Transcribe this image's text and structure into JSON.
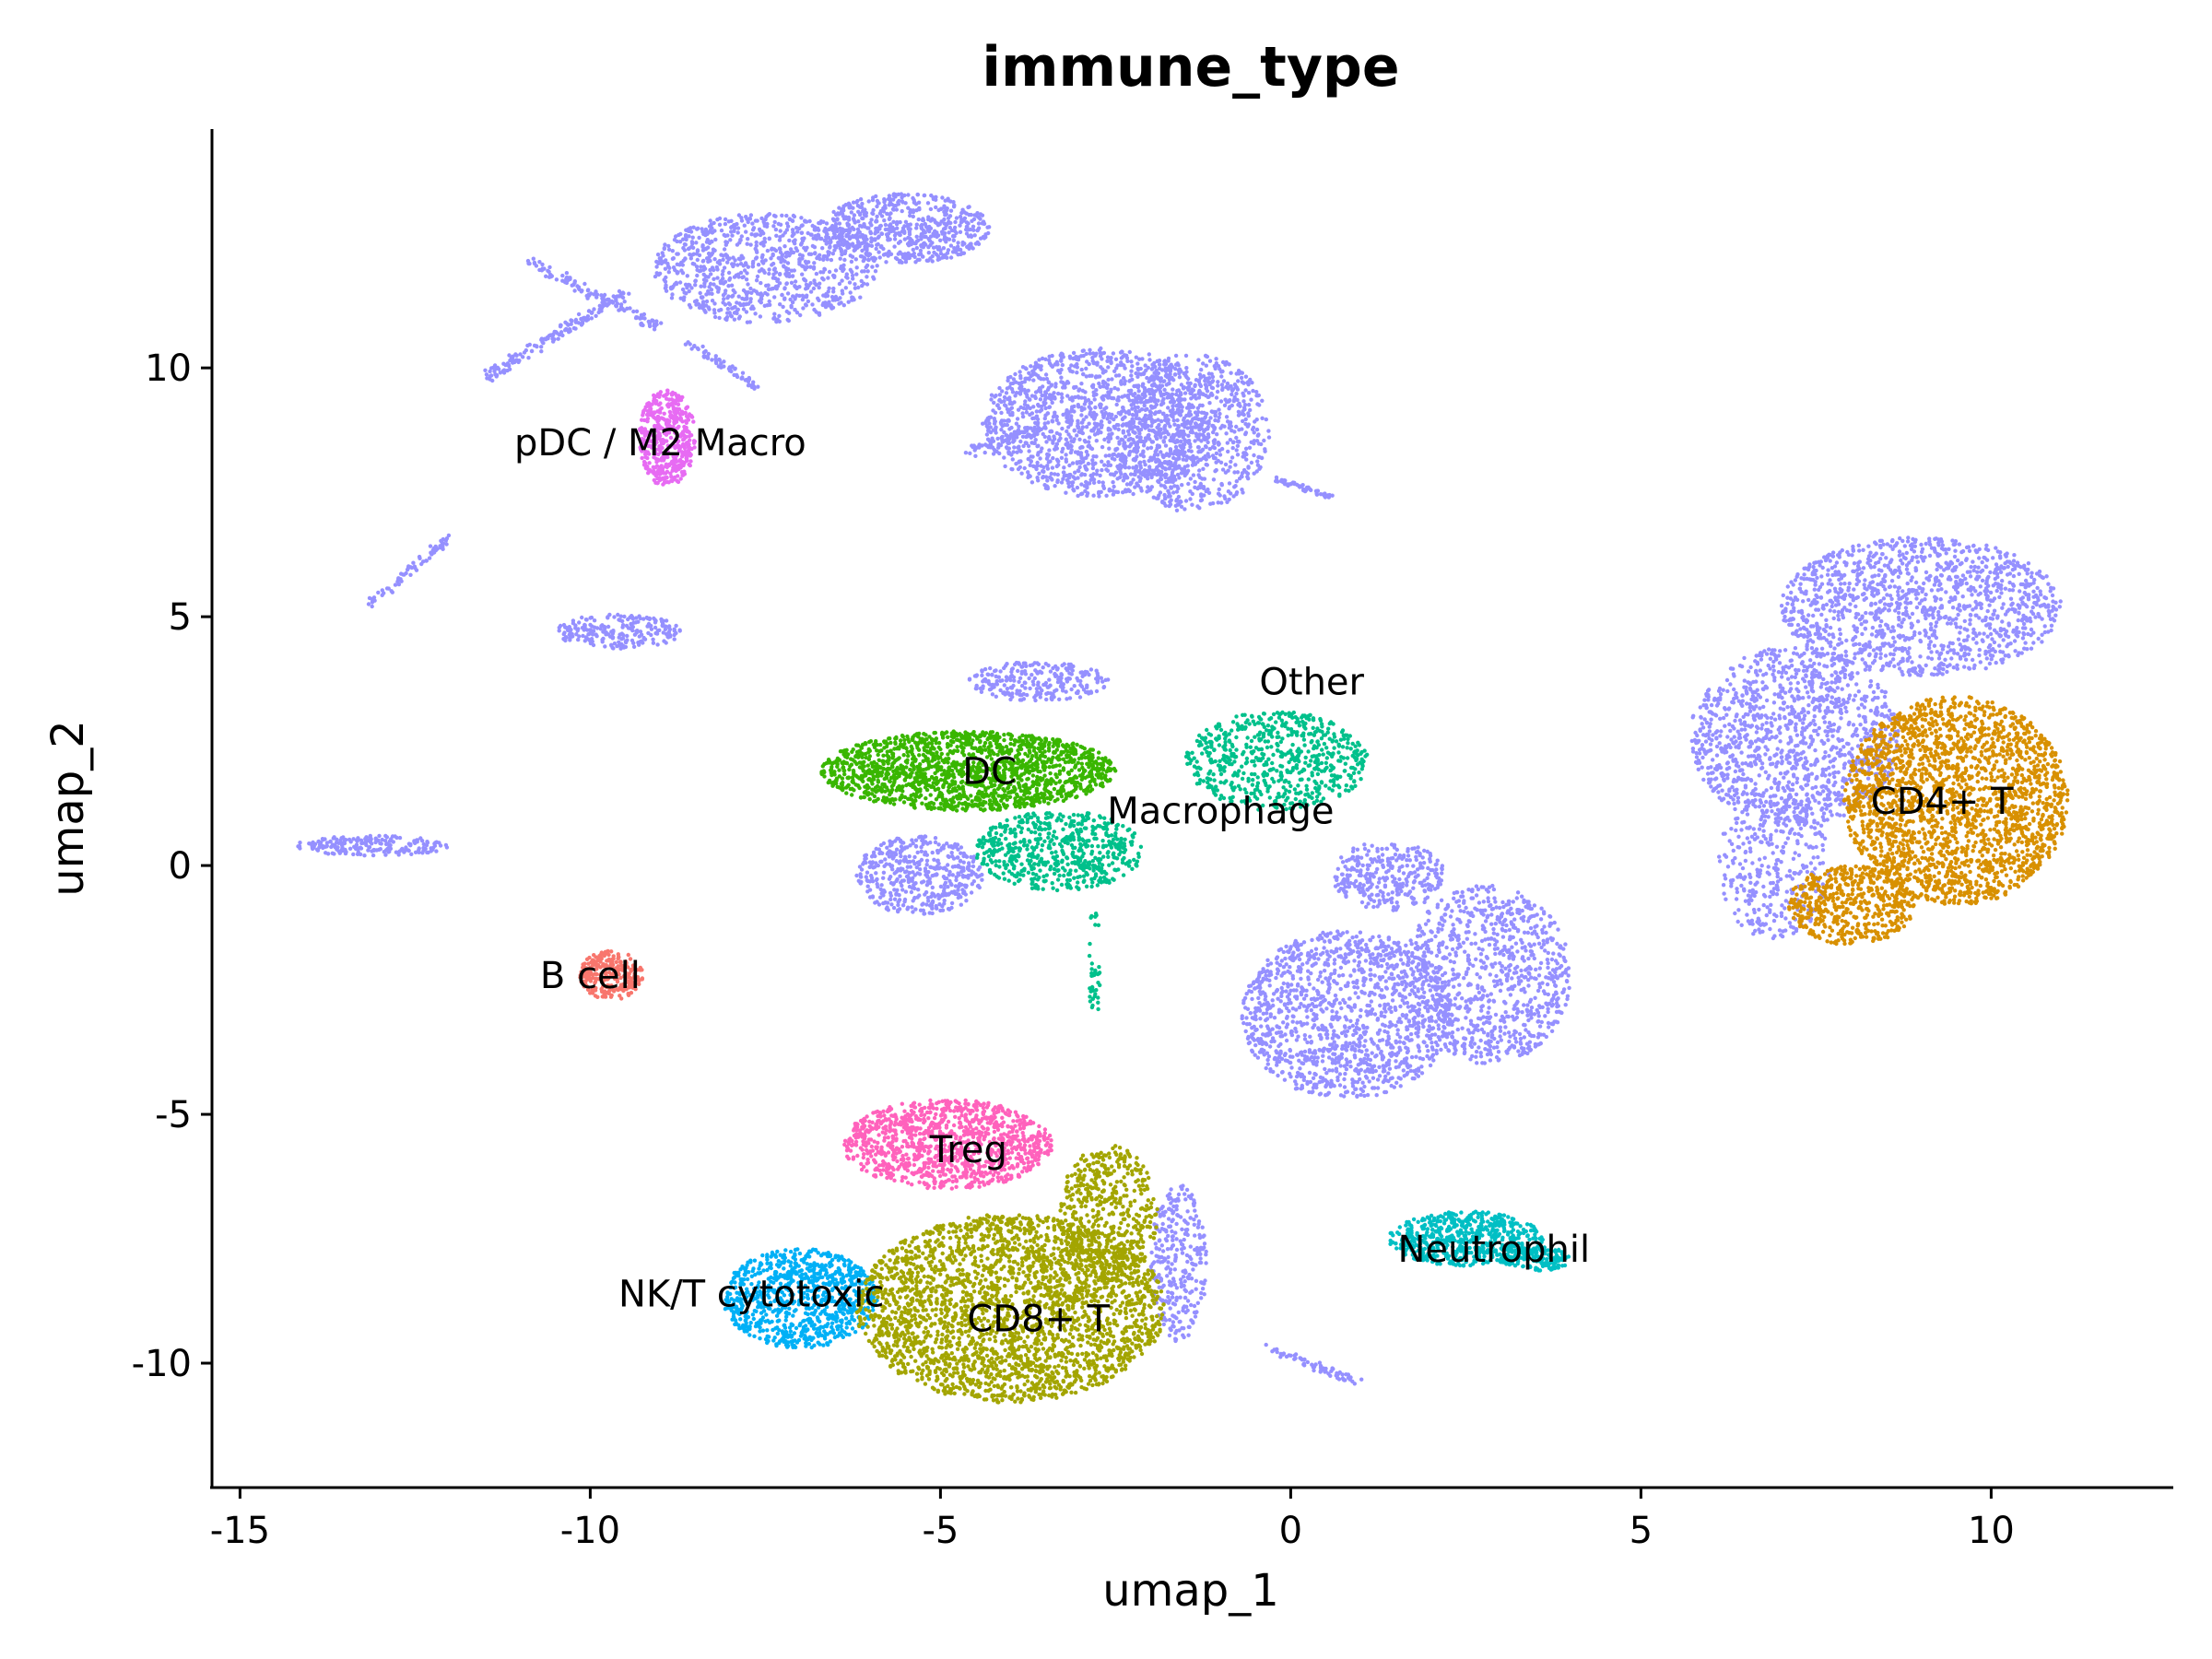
{
  "chart_data": {
    "type": "scatter",
    "title": "immune_type",
    "xlabel": "umap_1",
    "ylabel": "umap_2",
    "xlim": [
      -15.4,
      12.6
    ],
    "ylim": [
      -12.5,
      14.8
    ],
    "xticks": [
      -15,
      -10,
      -5,
      0,
      5,
      10
    ],
    "yticks": [
      -10,
      -5,
      0,
      5,
      10
    ],
    "xtick_labels": [
      "-15",
      "-10",
      "-5",
      "0",
      "5",
      "10"
    ],
    "ytick_labels": [
      "-10",
      "-5",
      "0",
      "5",
      "10"
    ],
    "grid": false,
    "legend": "none",
    "series": [
      {
        "name": "Other",
        "color": "#9590FF",
        "label_pos": [
          0.3,
          3.7
        ]
      },
      {
        "name": "pDC / M2 Macro",
        "color": "#E76BF3",
        "label_pos": [
          -9.0,
          8.5
        ]
      },
      {
        "name": "DC",
        "color": "#39B600",
        "label_pos": [
          -4.3,
          1.9
        ]
      },
      {
        "name": "Macrophage",
        "color": "#00C08B",
        "label_pos": [
          -1.0,
          1.1
        ]
      },
      {
        "name": "B cell",
        "color": "#F8766D",
        "label_pos": [
          -10.0,
          -2.2
        ]
      },
      {
        "name": "Treg",
        "color": "#FF62BC",
        "label_pos": [
          -4.6,
          -5.7
        ]
      },
      {
        "name": "NK/T cytotoxic",
        "color": "#00B0F6",
        "label_pos": [
          -7.7,
          -8.6
        ]
      },
      {
        "name": "CD8+ T",
        "color": "#A3A500",
        "label_pos": [
          -3.6,
          -9.1
        ]
      },
      {
        "name": "CD4+ T",
        "color": "#D89000",
        "label_pos": [
          9.3,
          1.3
        ]
      },
      {
        "name": "Neutrophil",
        "color": "#00BFC4",
        "label_pos": [
          2.9,
          -7.7
        ]
      }
    ],
    "clusters": [
      {
        "series": "Other",
        "shape": "ellipse",
        "cx": -7.5,
        "cy": 12.0,
        "rx": 1.6,
        "ry": 1.1,
        "n": 900
      },
      {
        "series": "Other",
        "shape": "ellipse",
        "cx": -5.5,
        "cy": 12.8,
        "rx": 1.2,
        "ry": 0.7,
        "n": 600
      },
      {
        "series": "Other",
        "shape": "line",
        "x1": -9.5,
        "y1": 11.5,
        "x2": -11.5,
        "y2": 9.8,
        "w": 0.2,
        "n": 150
      },
      {
        "series": "Other",
        "shape": "line",
        "x1": -9.0,
        "y1": 10.8,
        "x2": -10.8,
        "y2": 12.1,
        "w": 0.2,
        "n": 120
      },
      {
        "series": "Other",
        "shape": "line",
        "x1": -8.6,
        "y1": 10.5,
        "x2": -7.6,
        "y2": 9.6,
        "w": 0.15,
        "n": 60
      },
      {
        "series": "Other",
        "shape": "ellipse",
        "cx": -2.7,
        "cy": 8.9,
        "rx": 1.7,
        "ry": 1.5,
        "n": 1400
      },
      {
        "series": "Other",
        "shape": "ellipse",
        "cx": -1.4,
        "cy": 8.7,
        "rx": 1.1,
        "ry": 1.6,
        "n": 700
      },
      {
        "series": "Other",
        "shape": "line",
        "x1": -4.6,
        "y1": 8.3,
        "x2": -3.5,
        "y2": 8.8,
        "w": 0.2,
        "n": 80
      },
      {
        "series": "Other",
        "shape": "line",
        "x1": -0.3,
        "y1": 7.8,
        "x2": 0.6,
        "y2": 7.4,
        "w": 0.1,
        "n": 50
      },
      {
        "series": "Other",
        "shape": "line",
        "x1": -13.2,
        "y1": 5.2,
        "x2": -12.0,
        "y2": 6.6,
        "w": 0.15,
        "n": 70
      },
      {
        "series": "Other",
        "shape": "ellipse",
        "cx": -9.6,
        "cy": 4.7,
        "rx": 0.9,
        "ry": 0.35,
        "n": 220
      },
      {
        "series": "Other",
        "shape": "ellipse",
        "cx": -13.1,
        "cy": 0.4,
        "rx": 1.1,
        "ry": 0.2,
        "n": 200
      },
      {
        "series": "Other",
        "shape": "ellipse",
        "cx": -3.6,
        "cy": 3.7,
        "rx": 1.0,
        "ry": 0.4,
        "n": 250
      },
      {
        "series": "Other",
        "shape": "ellipse",
        "cx": -5.3,
        "cy": -0.2,
        "rx": 0.9,
        "ry": 0.8,
        "n": 450
      },
      {
        "series": "Other",
        "shape": "ellipse",
        "cx": 0.8,
        "cy": -3.0,
        "rx": 1.5,
        "ry": 1.7,
        "n": 1300
      },
      {
        "series": "Other",
        "shape": "ellipse",
        "cx": 2.8,
        "cy": -2.2,
        "rx": 1.2,
        "ry": 1.8,
        "n": 900
      },
      {
        "series": "Other",
        "shape": "ellipse",
        "cx": 1.4,
        "cy": -0.2,
        "rx": 0.8,
        "ry": 0.7,
        "n": 300
      },
      {
        "series": "Other",
        "shape": "ellipse",
        "cx": 7.2,
        "cy": 2.6,
        "rx": 1.5,
        "ry": 1.8,
        "n": 1200
      },
      {
        "series": "Other",
        "shape": "ellipse",
        "cx": 9.0,
        "cy": 5.2,
        "rx": 2.0,
        "ry": 1.4,
        "n": 1300
      },
      {
        "series": "Other",
        "shape": "ellipse",
        "cx": 6.9,
        "cy": 0.0,
        "rx": 0.8,
        "ry": 1.5,
        "n": 350
      },
      {
        "series": "Other",
        "shape": "ellipse",
        "cx": -1.6,
        "cy": -8.0,
        "rx": 0.4,
        "ry": 1.6,
        "n": 300
      },
      {
        "series": "Other",
        "shape": "line",
        "x1": -0.3,
        "y1": -9.7,
        "x2": 1.0,
        "y2": -10.4,
        "w": 0.15,
        "n": 70
      },
      {
        "series": "pDC / M2 Macro",
        "shape": "ellipse",
        "cx": -8.9,
        "cy": 8.6,
        "rx": 0.4,
        "ry": 1.0,
        "n": 450
      },
      {
        "series": "DC",
        "shape": "ellipse",
        "cx": -4.6,
        "cy": 1.9,
        "rx": 2.1,
        "ry": 0.8,
        "n": 1700
      },
      {
        "series": "Macrophage",
        "shape": "ellipse",
        "cx": -3.3,
        "cy": 0.3,
        "rx": 1.2,
        "ry": 0.8,
        "n": 600
      },
      {
        "series": "Macrophage",
        "shape": "ellipse",
        "cx": -0.2,
        "cy": 2.1,
        "rx": 1.3,
        "ry": 1.0,
        "n": 650
      },
      {
        "series": "Macrophage",
        "shape": "line",
        "x1": -2.8,
        "y1": -1.0,
        "x2": -2.8,
        "y2": -3.0,
        "w": 0.15,
        "n": 40
      },
      {
        "series": "B cell",
        "shape": "ellipse",
        "cx": -9.7,
        "cy": -2.2,
        "rx": 0.45,
        "ry": 0.5,
        "n": 280
      },
      {
        "series": "Treg",
        "shape": "ellipse",
        "cx": -4.9,
        "cy": -5.6,
        "rx": 1.5,
        "ry": 0.9,
        "n": 1100
      },
      {
        "series": "NK/T cytotoxic",
        "shape": "ellipse",
        "cx": -7.0,
        "cy": -8.7,
        "rx": 1.1,
        "ry": 1.0,
        "n": 900
      },
      {
        "series": "CD8+ T",
        "shape": "ellipse",
        "cx": -4.0,
        "cy": -8.9,
        "rx": 2.2,
        "ry": 1.9,
        "n": 2700
      },
      {
        "series": "CD8+ T",
        "shape": "ellipse",
        "cx": -2.6,
        "cy": -7.0,
        "rx": 0.7,
        "ry": 1.4,
        "n": 500
      },
      {
        "series": "CD4+ T",
        "shape": "ellipse",
        "cx": 9.5,
        "cy": 1.3,
        "rx": 1.6,
        "ry": 2.1,
        "n": 2200
      },
      {
        "series": "CD4+ T",
        "shape": "ellipse",
        "cx": 8.0,
        "cy": -0.8,
        "rx": 0.9,
        "ry": 0.8,
        "n": 500
      },
      {
        "series": "Neutrophil",
        "shape": "ellipse",
        "cx": 2.5,
        "cy": -7.5,
        "rx": 1.1,
        "ry": 0.55,
        "n": 600
      },
      {
        "series": "Neutrophil",
        "shape": "ellipse",
        "cx": 3.5,
        "cy": -7.9,
        "rx": 0.5,
        "ry": 0.25,
        "n": 150
      }
    ]
  }
}
